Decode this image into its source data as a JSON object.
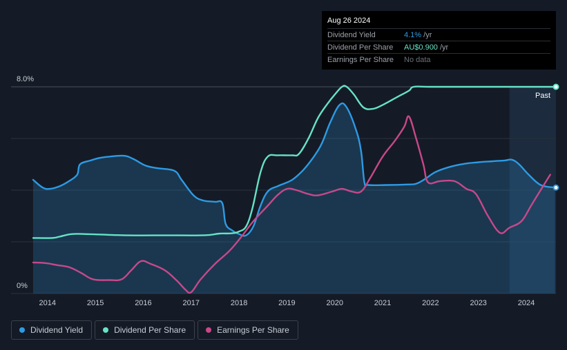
{
  "tooltip": {
    "date": "Aug 26 2024",
    "rows": [
      {
        "label": "Dividend Yield",
        "value": "4.1%",
        "unit": " /yr"
      },
      {
        "label": "Dividend Per Share",
        "value": "AU$0.900",
        "unit": " /yr"
      },
      {
        "label": "Earnings Per Share",
        "value": "No data",
        "unit": ""
      }
    ]
  },
  "legend": [
    {
      "label": "Dividend Yield",
      "color": "#2d9be4"
    },
    {
      "label": "Dividend Per Share",
      "color": "#66e3c7"
    },
    {
      "label": "Earnings Per Share",
      "color": "#c8488a"
    }
  ],
  "chart_data": {
    "type": "line",
    "title": "",
    "xlabel": "",
    "ylabel": "",
    "ylim": [
      0,
      8
    ],
    "y_tick_labels": [
      "8.0%",
      "0%"
    ],
    "x_ticks": [
      2014,
      2015,
      2016,
      2017,
      2018,
      2019,
      2020,
      2021,
      2022,
      2023,
      2024
    ],
    "past_label": "Past",
    "forecast_region_start": 2023.65,
    "series": [
      {
        "name": "Dividend Yield",
        "color": "#2d9be4",
        "filled": true,
        "points": [
          [
            2013.7,
            4.4
          ],
          [
            2013.9,
            4.1
          ],
          [
            2014.05,
            4.05
          ],
          [
            2014.25,
            4.15
          ],
          [
            2014.45,
            4.35
          ],
          [
            2014.62,
            4.6
          ],
          [
            2014.68,
            5.0
          ],
          [
            2014.9,
            5.15
          ],
          [
            2015.1,
            5.25
          ],
          [
            2015.3,
            5.3
          ],
          [
            2015.6,
            5.33
          ],
          [
            2015.8,
            5.2
          ],
          [
            2016.05,
            4.95
          ],
          [
            2016.3,
            4.85
          ],
          [
            2016.65,
            4.75
          ],
          [
            2016.8,
            4.4
          ],
          [
            2017.05,
            3.8
          ],
          [
            2017.25,
            3.6
          ],
          [
            2017.5,
            3.55
          ],
          [
            2017.65,
            3.5
          ],
          [
            2017.72,
            2.7
          ],
          [
            2017.85,
            2.45
          ],
          [
            2018.0,
            2.3
          ],
          [
            2018.15,
            2.25
          ],
          [
            2018.3,
            2.6
          ],
          [
            2018.45,
            3.4
          ],
          [
            2018.6,
            3.95
          ],
          [
            2018.8,
            4.15
          ],
          [
            2019.0,
            4.3
          ],
          [
            2019.15,
            4.45
          ],
          [
            2019.4,
            4.9
          ],
          [
            2019.7,
            5.7
          ],
          [
            2019.9,
            6.6
          ],
          [
            2020.1,
            7.3
          ],
          [
            2020.25,
            7.2
          ],
          [
            2020.45,
            6.3
          ],
          [
            2020.55,
            5.5
          ],
          [
            2020.62,
            4.3
          ],
          [
            2020.7,
            4.2
          ],
          [
            2021.1,
            4.2
          ],
          [
            2021.5,
            4.22
          ],
          [
            2021.7,
            4.25
          ],
          [
            2021.9,
            4.45
          ],
          [
            2022.1,
            4.7
          ],
          [
            2022.4,
            4.9
          ],
          [
            2022.7,
            5.02
          ],
          [
            2023.0,
            5.08
          ],
          [
            2023.3,
            5.12
          ],
          [
            2023.55,
            5.15
          ],
          [
            2023.7,
            5.18
          ],
          [
            2023.85,
            5.0
          ],
          [
            2024.05,
            4.6
          ],
          [
            2024.3,
            4.2
          ],
          [
            2024.6,
            4.1
          ]
        ]
      },
      {
        "name": "Dividend Per Share",
        "color": "#66e3c7",
        "filled": false,
        "points": [
          [
            2013.7,
            2.15
          ],
          [
            2014.1,
            2.15
          ],
          [
            2014.25,
            2.2
          ],
          [
            2014.5,
            2.3
          ],
          [
            2014.8,
            2.3
          ],
          [
            2015.3,
            2.27
          ],
          [
            2015.7,
            2.25
          ],
          [
            2016.2,
            2.25
          ],
          [
            2016.8,
            2.25
          ],
          [
            2017.2,
            2.25
          ],
          [
            2017.4,
            2.27
          ],
          [
            2017.6,
            2.32
          ],
          [
            2017.85,
            2.33
          ],
          [
            2018.0,
            2.4
          ],
          [
            2018.15,
            2.6
          ],
          [
            2018.28,
            3.3
          ],
          [
            2018.45,
            4.7
          ],
          [
            2018.6,
            5.3
          ],
          [
            2018.8,
            5.35
          ],
          [
            2019.1,
            5.35
          ],
          [
            2019.25,
            5.4
          ],
          [
            2019.45,
            6.0
          ],
          [
            2019.65,
            6.8
          ],
          [
            2019.85,
            7.35
          ],
          [
            2020.0,
            7.7
          ],
          [
            2020.15,
            8.0
          ],
          [
            2020.25,
            8.0
          ],
          [
            2020.4,
            7.7
          ],
          [
            2020.6,
            7.2
          ],
          [
            2020.8,
            7.15
          ],
          [
            2021.0,
            7.3
          ],
          [
            2021.3,
            7.6
          ],
          [
            2021.55,
            7.85
          ],
          [
            2021.65,
            8.0
          ],
          [
            2022.0,
            8.0
          ],
          [
            2023.0,
            8.0
          ],
          [
            2024.0,
            8.0
          ],
          [
            2024.6,
            8.0
          ]
        ]
      },
      {
        "name": "Earnings Per Share",
        "color": "#c8488a",
        "filled": false,
        "points": [
          [
            2013.7,
            1.2
          ],
          [
            2013.95,
            1.18
          ],
          [
            2014.2,
            1.1
          ],
          [
            2014.45,
            1.02
          ],
          [
            2014.7,
            0.8
          ],
          [
            2014.95,
            0.55
          ],
          [
            2015.3,
            0.52
          ],
          [
            2015.55,
            0.55
          ],
          [
            2015.75,
            0.9
          ],
          [
            2015.95,
            1.25
          ],
          [
            2016.15,
            1.15
          ],
          [
            2016.45,
            0.9
          ],
          [
            2016.7,
            0.5
          ],
          [
            2016.88,
            0.15
          ],
          [
            2017.0,
            0.05
          ],
          [
            2017.2,
            0.55
          ],
          [
            2017.5,
            1.15
          ],
          [
            2017.8,
            1.65
          ],
          [
            2018.05,
            2.2
          ],
          [
            2018.3,
            2.8
          ],
          [
            2018.6,
            3.4
          ],
          [
            2018.8,
            3.8
          ],
          [
            2019.0,
            4.05
          ],
          [
            2019.2,
            4.0
          ],
          [
            2019.45,
            3.85
          ],
          [
            2019.65,
            3.8
          ],
          [
            2019.95,
            3.95
          ],
          [
            2020.15,
            4.05
          ],
          [
            2020.35,
            3.95
          ],
          [
            2020.55,
            3.95
          ],
          [
            2020.75,
            4.5
          ],
          [
            2021.0,
            5.3
          ],
          [
            2021.25,
            5.9
          ],
          [
            2021.45,
            6.45
          ],
          [
            2021.55,
            6.85
          ],
          [
            2021.7,
            6.0
          ],
          [
            2021.85,
            5.0
          ],
          [
            2021.95,
            4.3
          ],
          [
            2022.2,
            4.35
          ],
          [
            2022.5,
            4.35
          ],
          [
            2022.75,
            4.05
          ],
          [
            2022.95,
            3.85
          ],
          [
            2023.2,
            3.0
          ],
          [
            2023.45,
            2.35
          ],
          [
            2023.65,
            2.55
          ],
          [
            2023.9,
            2.8
          ],
          [
            2024.1,
            3.4
          ],
          [
            2024.3,
            4.0
          ],
          [
            2024.5,
            4.6
          ]
        ]
      }
    ]
  }
}
